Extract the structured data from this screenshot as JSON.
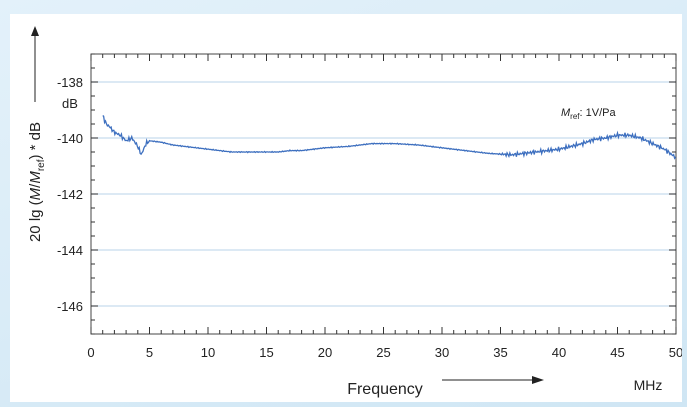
{
  "chart_data": {
    "type": "line",
    "xlabel": "Frequency",
    "xunit": "MHz",
    "ylabel_main": "20 lg (",
    "ylabel_M": "M",
    "ylabel_slash": "/",
    "ylabel_Mref_M": "M",
    "ylabel_ref_sub": "ref",
    "ylabel_tail": ") * dB",
    "yunit": "dB",
    "annotation_M": "M",
    "annotation_sub": "ref",
    "annotation_rest": ": 1V/Pa",
    "xlim": [
      0,
      50
    ],
    "ylim": [
      -147,
      -137
    ],
    "xticks": [
      0,
      5,
      10,
      15,
      20,
      25,
      30,
      35,
      40,
      45,
      50
    ],
    "yticks": [
      -138,
      -140,
      -142,
      -144,
      -146
    ],
    "grid": true,
    "line_color": "#3d6fbf",
    "series": [
      {
        "x": [
          1.0,
          1.3,
          1.6,
          2.0,
          2.5,
          3.0,
          3.5,
          4.0,
          4.3,
          4.7,
          5.0,
          6,
          7,
          8,
          10,
          12,
          14,
          16,
          17,
          18,
          20,
          22,
          24,
          26,
          28,
          30,
          32,
          34,
          36,
          37,
          38,
          40,
          42,
          43,
          44,
          45,
          46,
          47,
          48,
          49,
          50
        ],
        "y": [
          -139.2,
          -139.5,
          -139.6,
          -139.8,
          -139.9,
          -140.1,
          -140.0,
          -140.3,
          -140.6,
          -140.2,
          -140.1,
          -140.15,
          -140.25,
          -140.3,
          -140.4,
          -140.5,
          -140.5,
          -140.5,
          -140.45,
          -140.45,
          -140.35,
          -140.3,
          -140.2,
          -140.2,
          -140.25,
          -140.35,
          -140.45,
          -140.55,
          -140.6,
          -140.55,
          -140.5,
          -140.4,
          -140.2,
          -140.05,
          -140.0,
          -139.9,
          -139.9,
          -140.0,
          -140.2,
          -140.4,
          -140.7
        ]
      }
    ]
  }
}
